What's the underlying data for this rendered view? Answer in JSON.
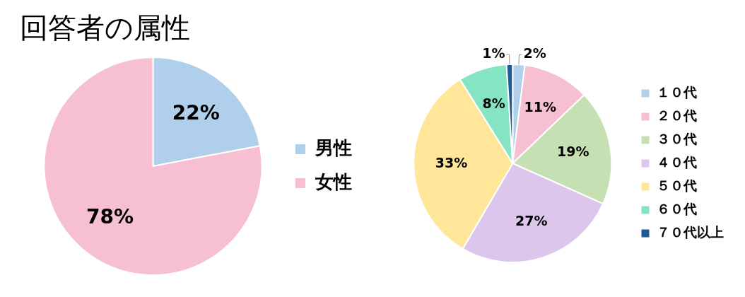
{
  "chart_data": [
    {
      "type": "pie",
      "title": "回答者の属性",
      "categories": [
        "男性",
        "女性"
      ],
      "values": [
        22,
        78
      ],
      "colors": [
        "#b0cfea",
        "#f6c0d2"
      ],
      "value_labels": [
        "22%",
        "78%"
      ],
      "legend": "right"
    },
    {
      "type": "pie",
      "categories": [
        "１０代",
        "２０代",
        "３０代",
        "４０代",
        "５０代",
        "６０代",
        "７０代以上"
      ],
      "values": [
        2,
        11,
        19,
        27,
        33,
        8,
        1
      ],
      "colors": [
        "#b0cfea",
        "#f6c0d2",
        "#c6e0b4",
        "#dcc6ec",
        "#ffe699",
        "#84e4c4",
        "#1f5a94"
      ],
      "value_labels": [
        "2%",
        "11%",
        "19%",
        "27%",
        "33%",
        "8%",
        "1%"
      ],
      "legend": "right"
    }
  ]
}
